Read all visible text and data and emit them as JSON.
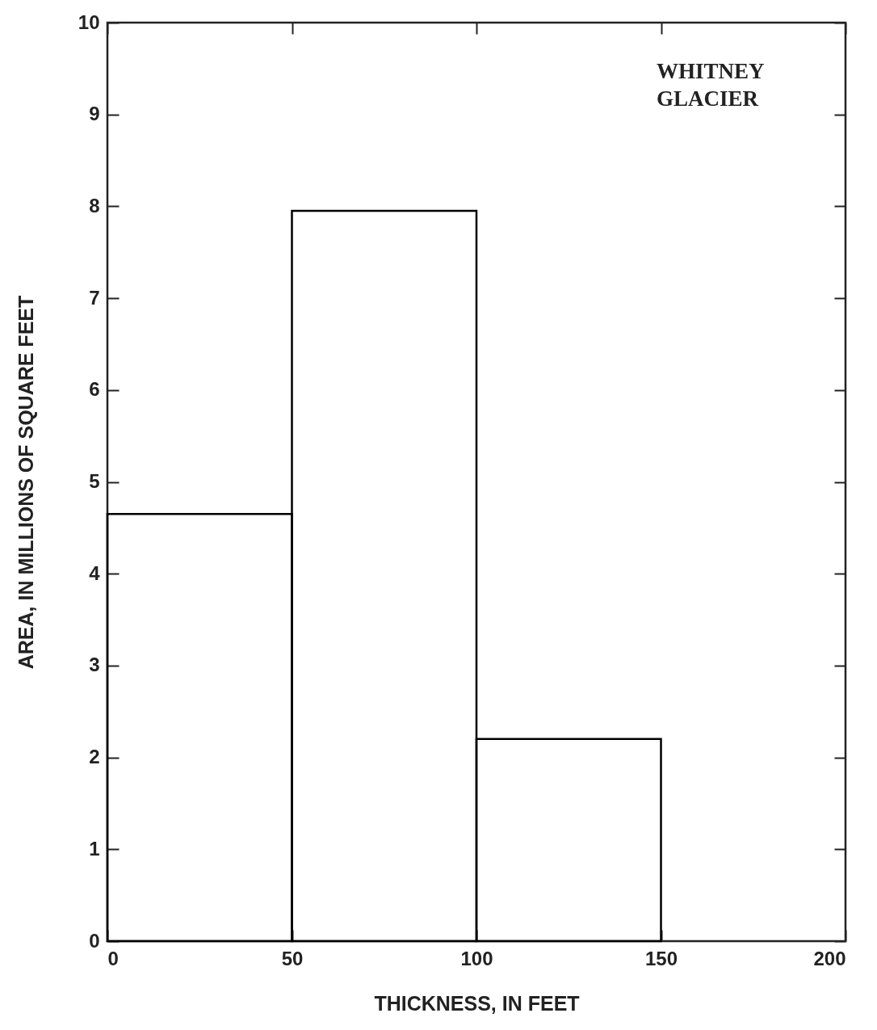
{
  "chart_data": {
    "type": "histogram",
    "xlabel": "THICKNESS, IN FEET",
    "ylabel": "AREA, IN MILLIONS OF SQUARE FEET",
    "bins": [
      0,
      50,
      100,
      150
    ],
    "values": [
      4.65,
      7.95,
      2.2
    ],
    "color": "#000000",
    "xlim": [
      0,
      200
    ],
    "xticks": [
      0,
      50,
      100,
      150,
      200
    ],
    "ylim": [
      0,
      10
    ],
    "yticks": [
      0,
      1,
      2,
      3,
      4,
      5,
      6,
      7,
      8,
      9,
      10
    ],
    "annotations": [
      "WHITNEY GLACIER"
    ],
    "grid": false
  }
}
